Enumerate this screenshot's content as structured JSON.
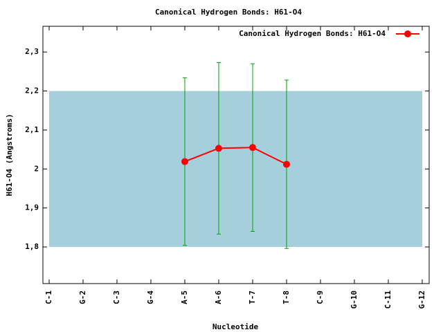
{
  "chart_data": {
    "type": "line",
    "title": "Canonical Hydrogen Bonds: H61-O4",
    "xlabel": "Nucleotide",
    "ylabel": "H61-O4 (Angstroms)",
    "categories": [
      "C-1",
      "G-2",
      "C-3",
      "G-4",
      "A-5",
      "A-6",
      "T-7",
      "T-8",
      "C-9",
      "G-10",
      "C-11",
      "G-12"
    ],
    "series": [
      {
        "name": "Canonical Hydrogen Bonds: H61-O4",
        "color": "#ff0000",
        "error_color": "#00a000",
        "values": [
          null,
          null,
          null,
          null,
          2.019,
          2.053,
          2.055,
          2.012,
          null,
          null,
          null,
          null
        ],
        "errors": [
          null,
          null,
          null,
          null,
          0.215,
          0.22,
          0.215,
          0.216,
          null,
          null,
          null,
          null
        ]
      }
    ],
    "band": [
      1.8,
      2.2
    ],
    "band_color": "#a5cfdd",
    "ylim": [
      1.706,
      2.366
    ],
    "yticks": [
      {
        "value": 1.8,
        "label": "1,8"
      },
      {
        "value": 1.9,
        "label": "1,9"
      },
      2,
      {
        "value": 2.1,
        "label": "2,1"
      },
      {
        "value": 2.2,
        "label": "2,2"
      },
      {
        "value": 2.3,
        "label": "2,3"
      }
    ],
    "legend": "top-right"
  }
}
